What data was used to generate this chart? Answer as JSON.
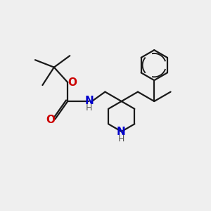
{
  "bg_color": "#efefef",
  "bond_color": "#1a1a1a",
  "N_color": "#0000cc",
  "O_color": "#cc0000",
  "line_width": 1.6,
  "font_size": 10,
  "fig_size": [
    3.0,
    3.0
  ],
  "dpi": 100,
  "xlim": [
    0,
    10
  ],
  "ylim": [
    0,
    10
  ]
}
